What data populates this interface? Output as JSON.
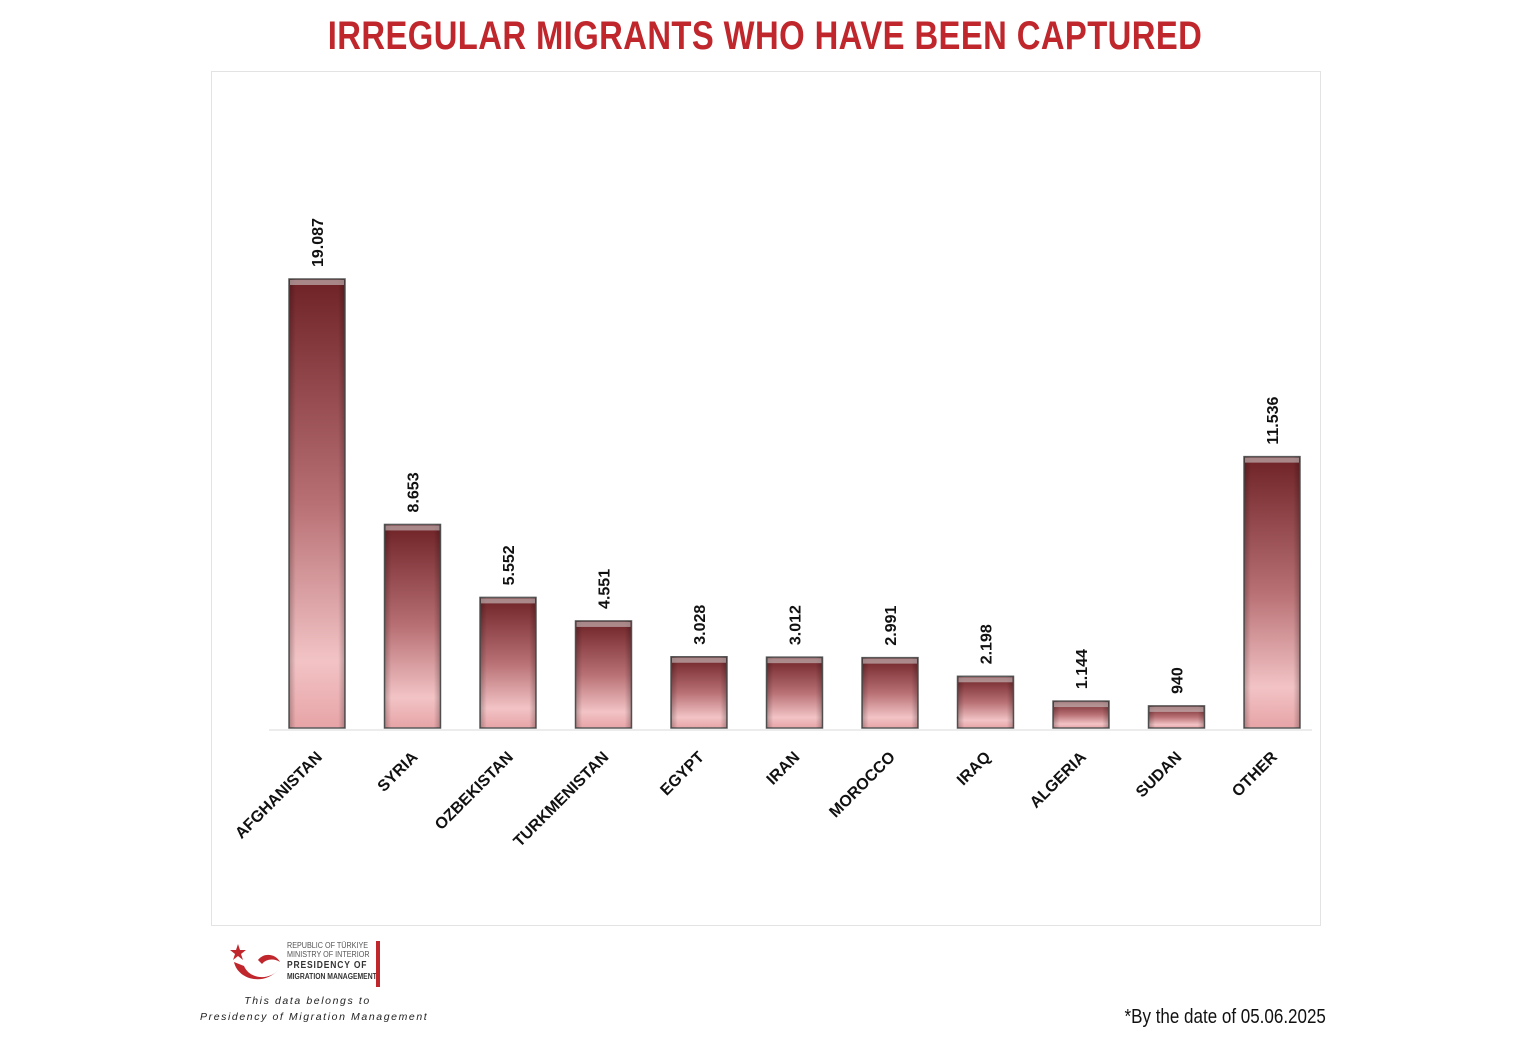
{
  "title": "IRREGULAR MIGRANTS WHO HAVE BEEN CAPTURED",
  "chart_data": {
    "type": "bar",
    "title": "IRREGULAR MIGRANTS WHO HAVE BEEN CAPTURED",
    "categories": [
      "AFGHANISTAN",
      "SYRIA",
      "OZBEKISTAN",
      "TURKMENISTAN",
      "EGYPT",
      "IRAN",
      "MOROCCO",
      "IRAQ",
      "ALGERIA",
      "SUDAN",
      "OTHER"
    ],
    "values": [
      19087,
      8653,
      5552,
      4551,
      3028,
      3012,
      2991,
      2198,
      1144,
      940,
      11536
    ],
    "value_labels": [
      "19.087",
      "8.653",
      "5.552",
      "4.551",
      "3.028",
      "3.012",
      "2.991",
      "2.198",
      "1.144",
      "940",
      "11.536"
    ],
    "xlabel": "",
    "ylabel": "",
    "ylim": [
      0,
      19087
    ],
    "grid": false,
    "legend": "none",
    "colors": {
      "bar_top": "#7a2a2e",
      "bar_mid": "#b66e72",
      "bar_bottom": "#f3c0c3",
      "bar_border": "#5a5a5a"
    }
  },
  "logo": {
    "line1": "REPUBLIC OF TÜRKIYE",
    "line2": "MINISTRY OF INTERIOR",
    "line3": "PRESIDENCY OF",
    "line4": "MIGRATION MANAGEMENT",
    "icon": "crescent-star-icon",
    "color": "#c0272d"
  },
  "credit": {
    "line1": "This data belongs to",
    "line2": "Presidency of Migration Management"
  },
  "date_note": "*By the date of 05.06.2025",
  "colors": {
    "title": "#c0272d"
  }
}
